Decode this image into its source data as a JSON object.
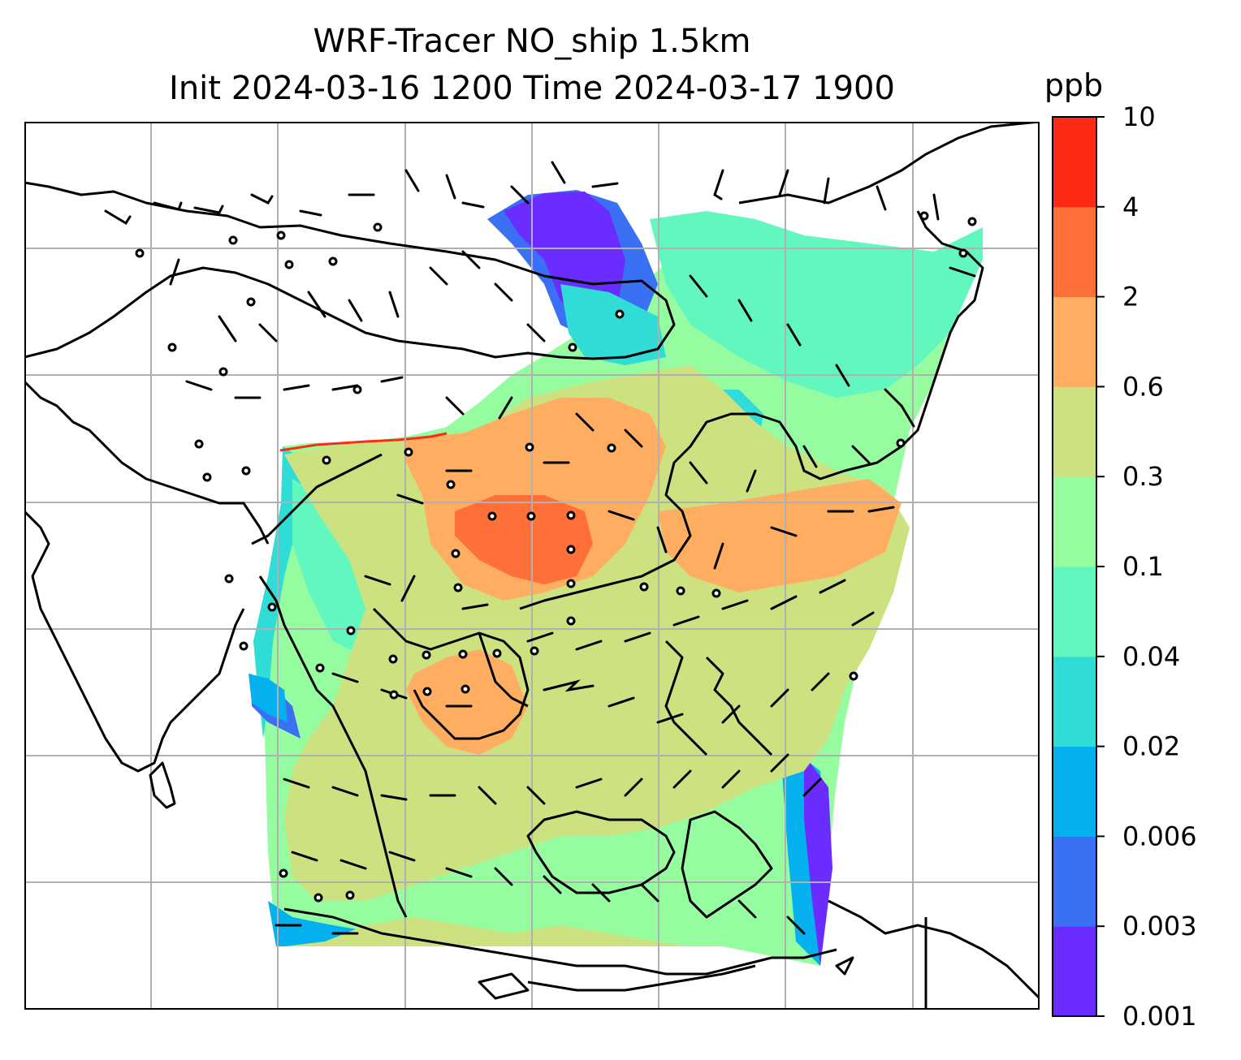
{
  "title": {
    "line1": "WRF-Tracer NO_ship 1.5km",
    "line2": "Init 2024-03-16 1200 Time 2024-03-17 1900"
  },
  "map": {
    "field": "NO_ship",
    "gridlines": true,
    "gridline_color": "#b0b0b0",
    "coastline_color": "#000000",
    "barb_color": "#000000"
  },
  "colorbar": {
    "unit": "ppb",
    "ticks": [
      "0.001",
      "0.003",
      "0.006",
      "0.02",
      "0.04",
      "0.1",
      "0.3",
      "0.6",
      "2",
      "4",
      "10"
    ],
    "colors": [
      "#6a2cff",
      "#3a70f4",
      "#05b0ee",
      "#2fdcd6",
      "#63f7c0",
      "#96fca0",
      "#cce281",
      "#ffad60",
      "#ff7038",
      "#ff2a14"
    ]
  }
}
